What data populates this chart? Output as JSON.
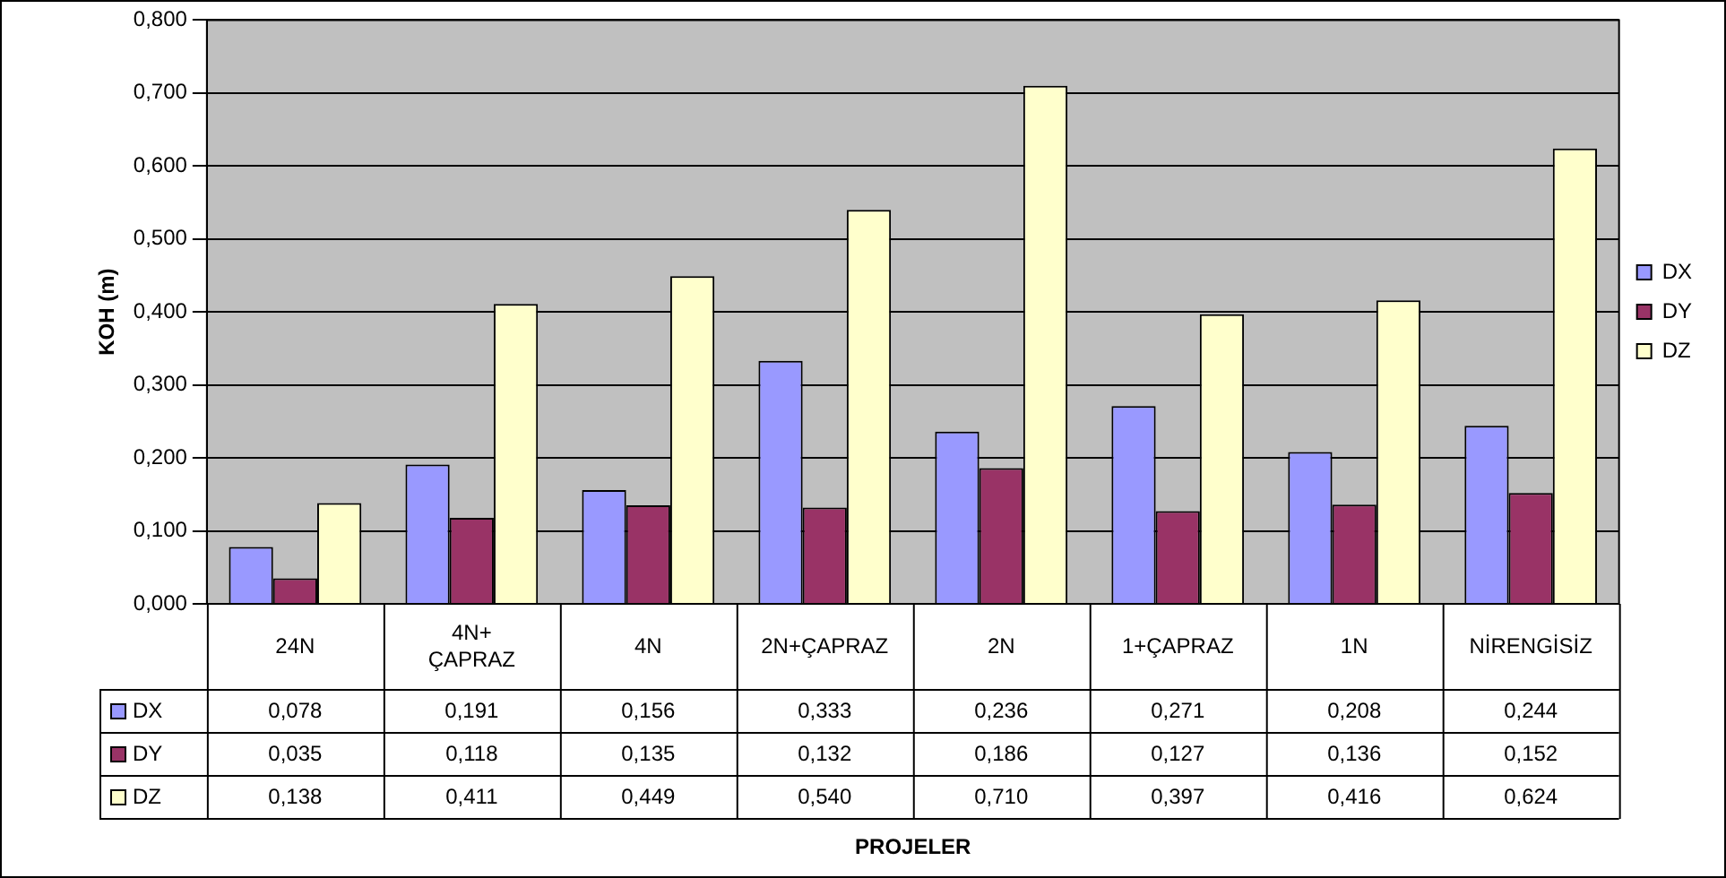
{
  "chart_data": {
    "type": "bar",
    "ylabel": "KOH (m)",
    "annotations": [
      "PROJELER"
    ],
    "categories": [
      "24N",
      "4N+ ÇAPRAZ",
      "4N",
      "2N+ÇAPRAZ",
      "2N",
      "1+ÇAPRAZ",
      "1N",
      "NİRENGİSİZ"
    ],
    "series": [
      {
        "name": "DX",
        "color": "#9999ff",
        "values": [
          0.078,
          0.191,
          0.156,
          0.333,
          0.236,
          0.271,
          0.208,
          0.244
        ],
        "value_labels": [
          "0,078",
          "0,191",
          "0,156",
          "0,333",
          "0,236",
          "0,271",
          "0,208",
          "0,244"
        ]
      },
      {
        "name": "DY",
        "color": "#993366",
        "values": [
          0.035,
          0.118,
          0.135,
          0.132,
          0.186,
          0.127,
          0.136,
          0.152
        ],
        "value_labels": [
          "0,035",
          "0,118",
          "0,135",
          "0,132",
          "0,186",
          "0,127",
          "0,136",
          "0,152"
        ]
      },
      {
        "name": "DZ",
        "color": "#ffffcc",
        "values": [
          0.138,
          0.411,
          0.449,
          0.54,
          0.71,
          0.397,
          0.416,
          0.624
        ],
        "value_labels": [
          "0,138",
          "0,411",
          "0,449",
          "0,540",
          "0,710",
          "0,397",
          "0,416",
          "0,624"
        ]
      }
    ],
    "ylim": [
      0,
      0.8
    ],
    "yticks": [
      {
        "value": 0,
        "label": "0,000"
      },
      {
        "value": 0.1,
        "label": "0,100"
      },
      {
        "value": 0.2,
        "label": "0,200"
      },
      {
        "value": 0.3,
        "label": "0,300"
      },
      {
        "value": 0.4,
        "label": "0,400"
      },
      {
        "value": 0.5,
        "label": "0,500"
      },
      {
        "value": 0.6,
        "label": "0,600"
      },
      {
        "value": 0.7,
        "label": "0,700"
      },
      {
        "value": 0.8,
        "label": "0,800"
      }
    ],
    "grid": "y",
    "legend": "right"
  }
}
